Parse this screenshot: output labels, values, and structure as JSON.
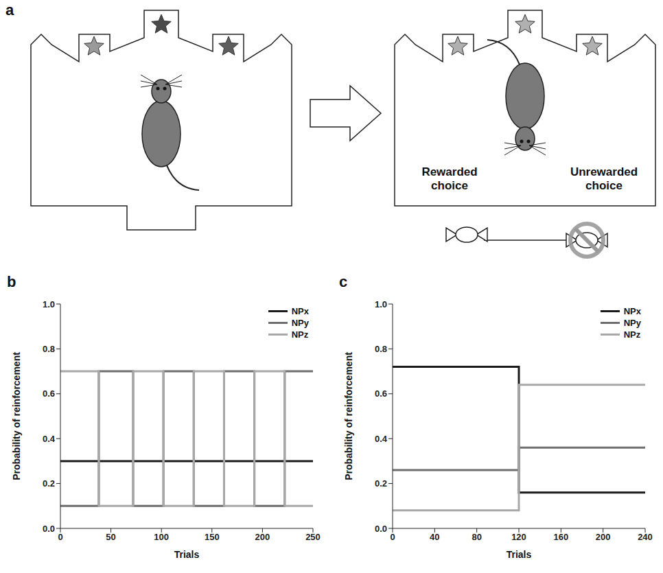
{
  "panel_a": {
    "panel": "a",
    "rewarded_label": "Rewarded choice",
    "unrewarded_label": "Unrewarded choice"
  },
  "chart_data": [
    {
      "panel": "b",
      "type": "line",
      "x_label": "Trials",
      "y_label": "Probability of reinforcement",
      "x": [
        0,
        38,
        72,
        102,
        132,
        162,
        192,
        222,
        250
      ],
      "series": [
        {
          "name": "NPx",
          "color": "#1a1a1a",
          "line_style": "step",
          "values": [
            0.3,
            0.3,
            0.3,
            0.3,
            0.3,
            0.3,
            0.3,
            0.3,
            0.3
          ]
        },
        {
          "name": "NPy",
          "color": "#6e6e6e",
          "line_style": "step",
          "values": [
            0.1,
            0.7,
            0.1,
            0.7,
            0.1,
            0.7,
            0.1,
            0.7,
            0.7
          ]
        },
        {
          "name": "NPz",
          "color": "#a8a8a8",
          "line_style": "step",
          "values": [
            0.7,
            0.1,
            0.7,
            0.1,
            0.7,
            0.1,
            0.7,
            0.1,
            0.1
          ]
        }
      ],
      "xlim": [
        0,
        250
      ],
      "xticks": [
        0,
        50,
        100,
        150,
        200,
        250
      ],
      "ylim": [
        0,
        1
      ],
      "yticks": [
        {
          "value": 0,
          "label": "0.0"
        },
        0.2,
        0.4,
        0.6,
        0.8,
        {
          "value": 1,
          "label": "1.0"
        }
      ],
      "grid": false,
      "legend": "top-right"
    },
    {
      "panel": "c",
      "type": "line",
      "x_label": "Trials",
      "y_label": "Probability of reinforcement",
      "x": [
        0,
        120,
        240
      ],
      "series": [
        {
          "name": "NPx",
          "color": "#1a1a1a",
          "line_style": "step",
          "values": [
            0.72,
            0.16,
            0.16
          ]
        },
        {
          "name": "NPy",
          "color": "#6e6e6e",
          "line_style": "step",
          "values": [
            0.26,
            0.36,
            0.36
          ]
        },
        {
          "name": "NPz",
          "color": "#a8a8a8",
          "line_style": "step",
          "values": [
            0.08,
            0.64,
            0.64
          ]
        }
      ],
      "xlim": [
        0,
        240
      ],
      "xticks": [
        0,
        40,
        80,
        120,
        160,
        200,
        240
      ],
      "ylim": [
        0,
        1
      ],
      "yticks": [
        {
          "value": 0,
          "label": "0.0"
        },
        0.2,
        0.4,
        0.6,
        0.8,
        {
          "value": 1,
          "label": "1.0"
        }
      ],
      "grid": false,
      "legend": "top-right"
    }
  ]
}
